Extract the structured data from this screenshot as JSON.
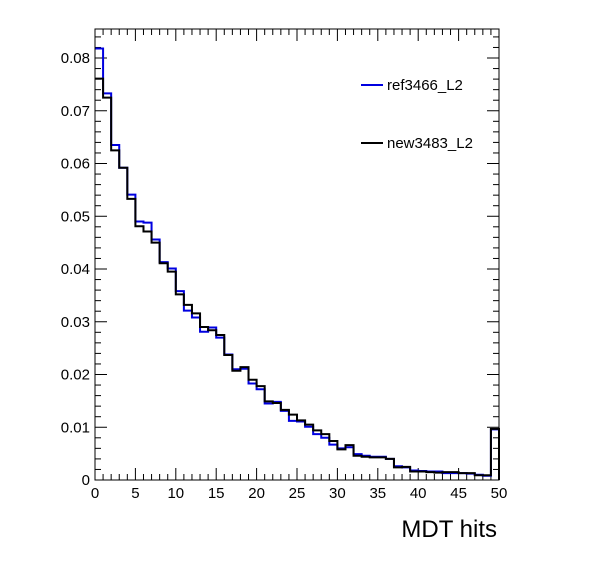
{
  "chart_data": {
    "type": "line",
    "style": "step-histogram",
    "title": "",
    "xlabel": "MDT hits",
    "ylabel": "",
    "xlim": [
      0,
      50
    ],
    "ylim": [
      0,
      0.0855
    ],
    "x_ticks": [
      0,
      5,
      10,
      15,
      20,
      25,
      30,
      35,
      40,
      45,
      50
    ],
    "x_tick_labels": [
      "0",
      "5",
      "10",
      "15",
      "20",
      "25",
      "30",
      "35",
      "40",
      "45",
      "50"
    ],
    "y_ticks": [
      0,
      0.01,
      0.02,
      0.03,
      0.04,
      0.05,
      0.06,
      0.07,
      0.08
    ],
    "y_tick_labels": [
      "0",
      "0.01",
      "0.02",
      "0.03",
      "0.04",
      "0.05",
      "0.06",
      "0.07",
      "0.08"
    ],
    "grid": false,
    "legend_position": "top-right",
    "bin_edges_start": 0,
    "bin_width": 1,
    "series": [
      {
        "name": "ref3466_L2",
        "color": "#0000e0",
        "values": [
          0.0818,
          0.0733,
          0.0635,
          0.0592,
          0.0541,
          0.049,
          0.0488,
          0.0456,
          0.0413,
          0.0401,
          0.0358,
          0.0321,
          0.0308,
          0.0281,
          0.0289,
          0.027,
          0.0238,
          0.021,
          0.0211,
          0.0183,
          0.0172,
          0.0145,
          0.0148,
          0.0131,
          0.0112,
          0.0111,
          0.0101,
          0.0087,
          0.008,
          0.0067,
          0.006,
          0.0062,
          0.0049,
          0.0046,
          0.0044,
          0.0044,
          0.004,
          0.0026,
          0.0024,
          0.0018,
          0.0017,
          0.0016,
          0.0016,
          0.0013,
          0.0013,
          0.0013,
          0.0012,
          0.001,
          0.0008,
          0.0096
        ]
      },
      {
        "name": "new3483_L2",
        "color": "#000000",
        "values": [
          0.0761,
          0.0725,
          0.0625,
          0.0592,
          0.0533,
          0.0481,
          0.0471,
          0.045,
          0.0411,
          0.0395,
          0.0352,
          0.0332,
          0.0316,
          0.029,
          0.0284,
          0.0275,
          0.0237,
          0.0207,
          0.0214,
          0.019,
          0.0178,
          0.0149,
          0.0146,
          0.0133,
          0.0124,
          0.0113,
          0.0105,
          0.0094,
          0.0087,
          0.0074,
          0.0058,
          0.0066,
          0.0046,
          0.0044,
          0.0043,
          0.0043,
          0.004,
          0.0024,
          0.0025,
          0.0016,
          0.0016,
          0.0015,
          0.0014,
          0.0015,
          0.0015,
          0.0013,
          0.0013,
          0.0009,
          0.0009,
          0.0097
        ]
      }
    ]
  }
}
